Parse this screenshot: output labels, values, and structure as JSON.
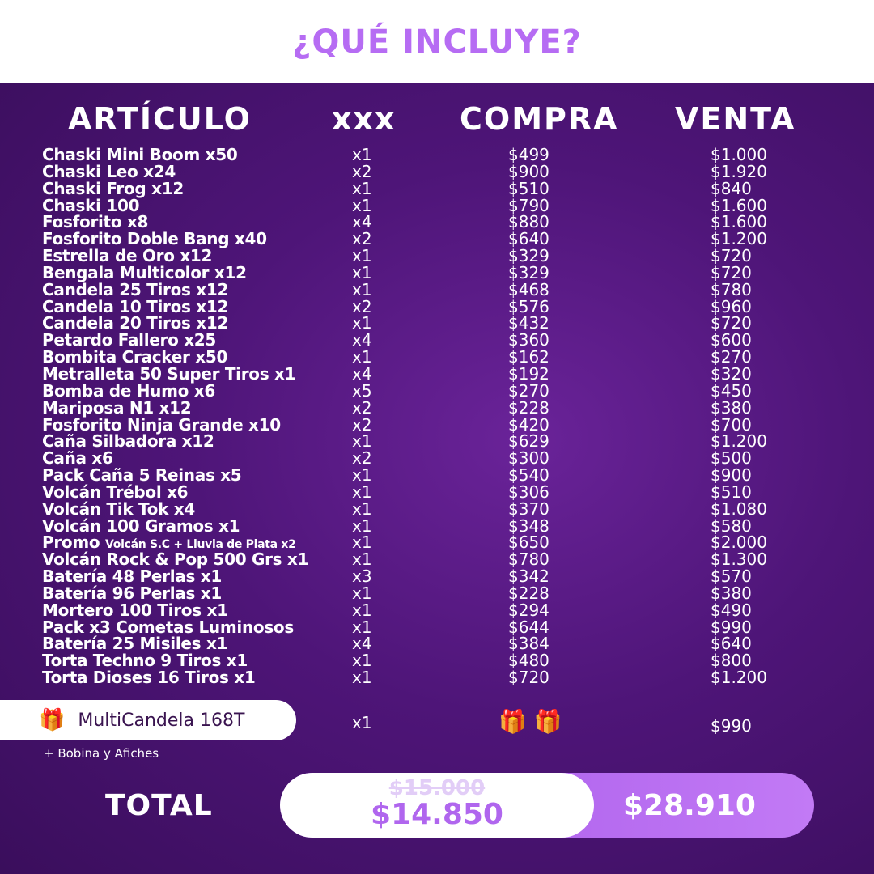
{
  "title": "¿QUÉ INCLUYE?",
  "headers": {
    "item": "ARTÍCULO",
    "qty": "xxx",
    "buy": "COMPRA",
    "sell": "VENTA"
  },
  "items": [
    {
      "name": "Chaski Mini Boom x50",
      "qty": "x1",
      "buy": "$499",
      "sell": "$1.000"
    },
    {
      "name": "Chaski Leo x24",
      "qty": "x2",
      "buy": "$900",
      "sell": "$1.920"
    },
    {
      "name": "Chaski Frog x12",
      "qty": "x1",
      "buy": "$510",
      "sell": "$840"
    },
    {
      "name": "Chaski 100",
      "qty": "x1",
      "buy": "$790",
      "sell": "$1.600"
    },
    {
      "name": "Fosforito x8",
      "qty": "x4",
      "buy": "$880",
      "sell": "$1.600"
    },
    {
      "name": "Fosforito Doble Bang x40",
      "qty": "x2",
      "buy": "$640",
      "sell": "$1.200"
    },
    {
      "name": "Estrella de Oro x12",
      "qty": "x1",
      "buy": "$329",
      "sell": "$720"
    },
    {
      "name": "Bengala Multicolor x12",
      "qty": "x1",
      "buy": "$329",
      "sell": "$720"
    },
    {
      "name": "Candela 25 Tiros x12",
      "qty": "x1",
      "buy": "$468",
      "sell": "$780"
    },
    {
      "name": "Candela 10 Tiros x12",
      "qty": "x2",
      "buy": "$576",
      "sell": "$960"
    },
    {
      "name": "Candela 20 Tiros x12",
      "qty": "x1",
      "buy": "$432",
      "sell": "$720"
    },
    {
      "name": "Petardo Fallero x25",
      "qty": "x4",
      "buy": "$360",
      "sell": "$600"
    },
    {
      "name": "Bombita Cracker x50",
      "qty": "x1",
      "buy": "$162",
      "sell": "$270"
    },
    {
      "name": "Metralleta 50 Super Tiros x1",
      "qty": "x4",
      "buy": "$192",
      "sell": "$320"
    },
    {
      "name": "Bomba de Humo x6",
      "qty": "x5",
      "buy": "$270",
      "sell": "$450"
    },
    {
      "name": "Mariposa N1 x12",
      "qty": "x2",
      "buy": "$228",
      "sell": "$380"
    },
    {
      "name": "Fosforito Ninja Grande x10",
      "qty": "x2",
      "buy": "$420",
      "sell": "$700"
    },
    {
      "name": "Caña Silbadora x12",
      "qty": "x1",
      "buy": "$629",
      "sell": "$1.200"
    },
    {
      "name": "Caña x6",
      "qty": "x2",
      "buy": "$300",
      "sell": "$500"
    },
    {
      "name": "Pack Caña 5 Reinas x5",
      "qty": "x1",
      "buy": "$540",
      "sell": "$900"
    },
    {
      "name": "Volcán Trébol x6",
      "qty": "x1",
      "buy": "$306",
      "sell": "$510"
    },
    {
      "name": "Volcán Tik Tok x4",
      "qty": "x1",
      "buy": "$370",
      "sell": "$1.080"
    },
    {
      "name": "Volcán 100 Gramos x1",
      "qty": "x1",
      "buy": "$348",
      "sell": "$580"
    },
    {
      "name": "Promo",
      "sub": "Volcán S.C + Lluvia de Plata x2",
      "qty": "x1",
      "buy": "$650",
      "sell": "$2.000"
    },
    {
      "name": "Volcán Rock & Pop 500 Grs x1",
      "qty": "x1",
      "buy": "$780",
      "sell": "$1.300"
    },
    {
      "name": "Batería 48 Perlas x1",
      "qty": "x3",
      "buy": "$342",
      "sell": "$570"
    },
    {
      "name": "Batería 96 Perlas x1",
      "qty": "x1",
      "buy": "$228",
      "sell": "$380"
    },
    {
      "name": "Mortero 100 Tiros x1",
      "qty": "x1",
      "buy": "$294",
      "sell": "$490"
    },
    {
      "name": "Pack x3 Cometas Luminosos",
      "qty": "x1",
      "buy": "$644",
      "sell": "$990"
    },
    {
      "name": "Batería 25 Misiles x1",
      "qty": "x4",
      "buy": "$384",
      "sell": "$640"
    },
    {
      "name": "Torta Techno 9 Tiros x1",
      "qty": "x1",
      "buy": "$480",
      "sell": "$800"
    },
    {
      "name": "Torta Dioses 16 Tiros x1",
      "qty": "x1",
      "buy": "$720",
      "sell": "$1.200"
    }
  ],
  "bonus": {
    "icon": "gift-icon",
    "name": "MultiCandela 168T",
    "qty": "x1",
    "sell": "$990",
    "extra": "+  Bobina y Afiches"
  },
  "total": {
    "label": "TOTAL",
    "old_price": "$15.000",
    "price": "$14.850",
    "sale_value": "$28.910"
  },
  "colors": {
    "accent": "#b66cf3",
    "background": "#4e1578"
  }
}
